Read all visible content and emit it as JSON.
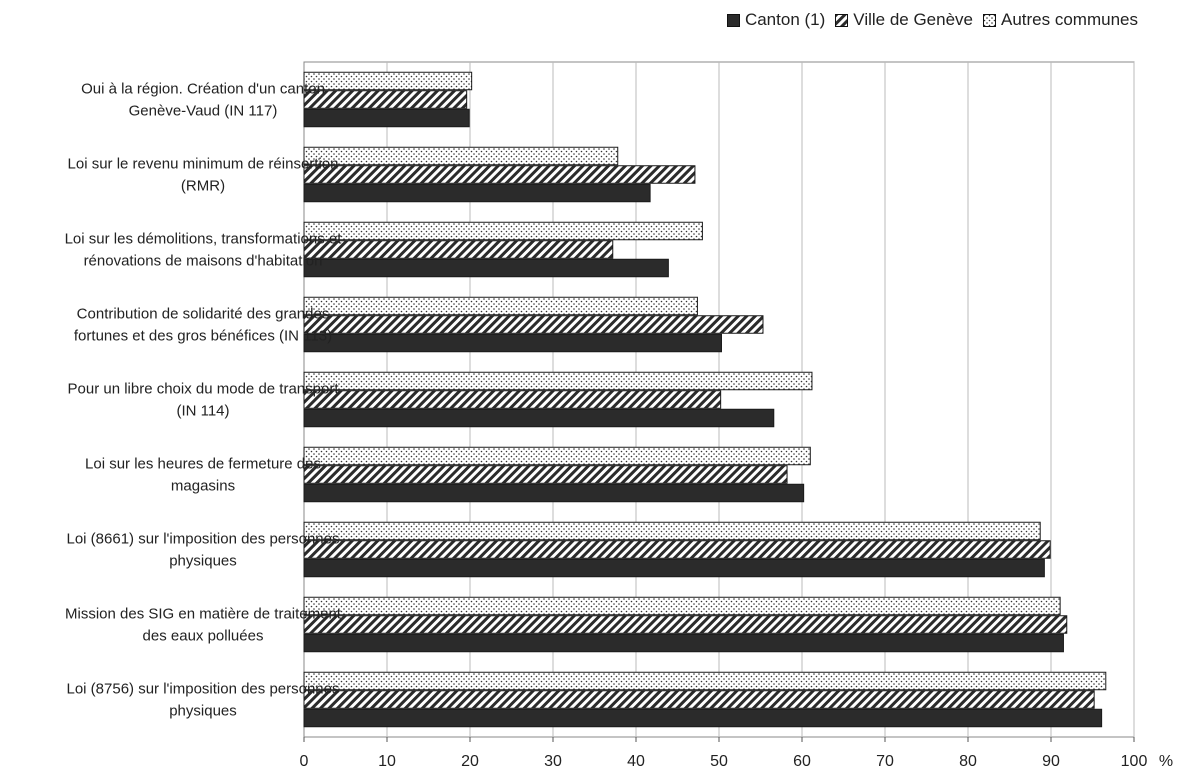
{
  "chart_data": {
    "type": "bar",
    "orientation": "horizontal",
    "categories": [
      "Oui à la région. Création d'un canton Genève-Vaud (IN 117)",
      "Loi sur le revenu minimum de réinsertion (RMR)",
      "Loi sur les démolitions, transformations et rénovations de maisons d'habitation",
      "Contribution de solidarité des grandes fortunes et des gros bénéfices (IN 113)",
      "Pour un libre choix du mode de transport (IN 114)",
      "Loi sur les heures de fermeture des magasins",
      "Loi (8661) sur l'imposition des personnes physiques",
      "Mission des SIG en matière de traitement des eaux polluées",
      "Loi (8756) sur l'imposition des personnes physiques"
    ],
    "category_lines": [
      [
        "Oui à la région. Création d'un canton",
        "Genève-Vaud (IN 117)"
      ],
      [
        "Loi sur le revenu minimum de réinsertion",
        "(RMR)"
      ],
      [
        "Loi sur les démolitions, transformations et",
        "rénovations de maisons d'habitation"
      ],
      [
        "Contribution de solidarité des grandes",
        "fortunes et des gros bénéfices (IN 113)"
      ],
      [
        "Pour un libre choix du mode de transport",
        "(IN 114)"
      ],
      [
        "Loi sur les heures de fermeture des",
        "magasins"
      ],
      [
        "Loi (8661) sur l'imposition des personnes",
        "physiques"
      ],
      [
        "Mission des SIG en matière de traitement",
        "des eaux polluées"
      ],
      [
        "Loi (8756) sur l'imposition des personnes",
        "physiques"
      ]
    ],
    "series": [
      {
        "name": "Canton (1)",
        "pattern": "solid",
        "color": "#2b2b2b",
        "values": [
          19.9,
          41.7,
          43.9,
          50.3,
          56.6,
          60.2,
          89.2,
          91.5,
          96.1
        ]
      },
      {
        "name": "Ville de Genève",
        "pattern": "diagonal-hatch",
        "color": "#2b2b2b",
        "values": [
          19.6,
          47.1,
          37.2,
          55.3,
          50.2,
          58.2,
          89.9,
          91.9,
          95.2
        ]
      },
      {
        "name": "Autres communes",
        "pattern": "dotted",
        "color": "#2b2b2b",
        "values": [
          20.2,
          37.8,
          48.0,
          47.4,
          61.2,
          61.0,
          88.7,
          91.1,
          96.6
        ]
      }
    ],
    "xlim": [
      0,
      100
    ],
    "x_ticks": [
      "0",
      "10",
      "20",
      "30",
      "40",
      "50",
      "60",
      "70",
      "80",
      "90",
      "100"
    ],
    "x_unit": "%",
    "grid": true,
    "legend_position": "top-right"
  }
}
